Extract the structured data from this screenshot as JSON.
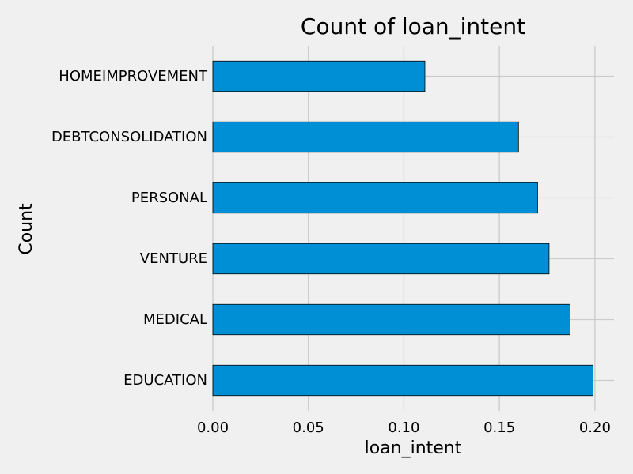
{
  "chart_data": {
    "type": "bar",
    "orientation": "horizontal",
    "title": "Count of loan_intent",
    "xlabel": "loan_intent",
    "ylabel": "Count",
    "categories": [
      "EDUCATION",
      "MEDICAL",
      "VENTURE",
      "PERSONAL",
      "DEBTCONSOLIDATION",
      "HOMEIMPROVEMENT"
    ],
    "values": [
      0.199,
      0.187,
      0.176,
      0.17,
      0.16,
      0.111
    ],
    "xlim": [
      0,
      0.21
    ],
    "xticks": [
      "0.00",
      "0.05",
      "0.10",
      "0.15",
      "0.20"
    ],
    "xtick_values": [
      0,
      0.05,
      0.1,
      0.15,
      0.2
    ],
    "grid": true,
    "legend": "none"
  },
  "colors": {
    "background": "#f0f0f0",
    "bar": "#008fd5",
    "bar_edge": "#000000",
    "grid": "#cbcbcb",
    "text": "#000000"
  }
}
